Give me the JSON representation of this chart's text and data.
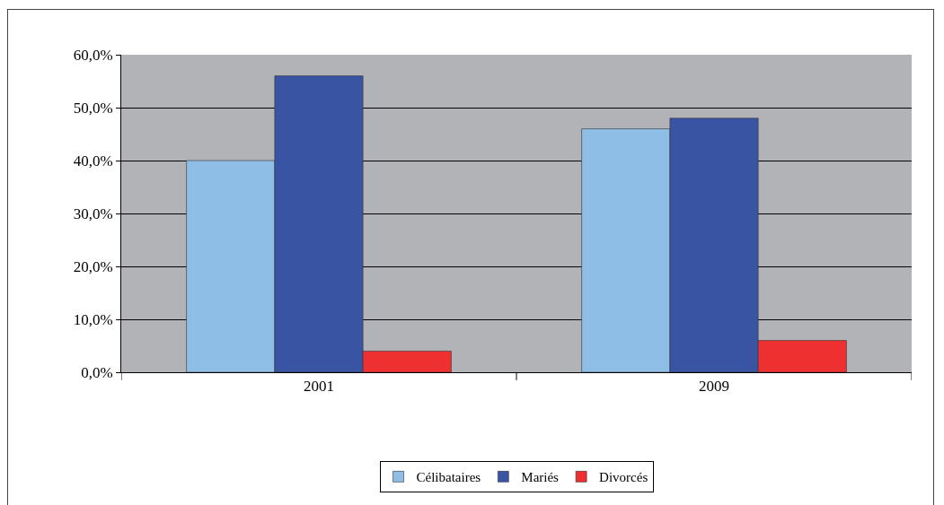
{
  "chart_data": {
    "type": "bar",
    "categories": [
      "2001",
      "2009"
    ],
    "series": [
      {
        "name": "Célibataires",
        "color": "#8ebde6",
        "values": [
          40,
          46
        ]
      },
      {
        "name": "Mariés",
        "color": "#3a54a4",
        "values": [
          56,
          48
        ]
      },
      {
        "name": "Divorcés",
        "color": "#ee3130",
        "values": [
          4,
          6
        ]
      }
    ],
    "ylim": [
      0,
      60
    ],
    "yticks": [
      {
        "value": 0,
        "label": "0,0%"
      },
      {
        "value": 10,
        "label": "10,0%"
      },
      {
        "value": 20,
        "label": "20,0%"
      },
      {
        "value": 30,
        "label": "30,0%"
      },
      {
        "value": 40,
        "label": "40,0%"
      },
      {
        "value": 50,
        "label": "50,0%"
      },
      {
        "value": 60,
        "label": "60,0%"
      }
    ],
    "grid": "y",
    "legend": "bottom"
  }
}
